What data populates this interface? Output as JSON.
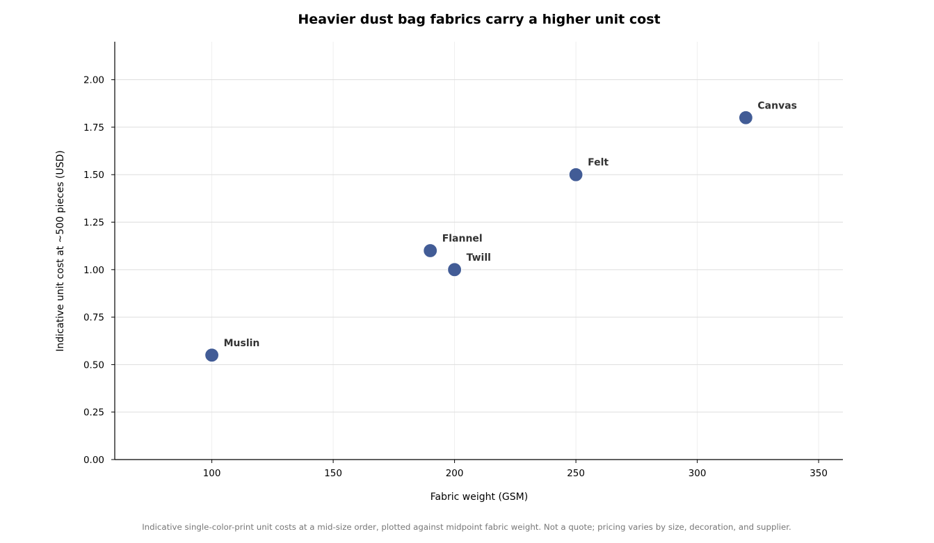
{
  "chart_data": {
    "type": "scatter",
    "title": "Heavier dust bag fabrics carry a higher unit cost",
    "xlabel": "Fabric weight (GSM)",
    "ylabel": "Indicative unit cost at ~500 pieces (USD)",
    "footnote": "Indicative single-color-print unit costs at a mid-size order, plotted against midpoint fabric weight. Not a quote; pricing varies by size, decoration, and supplier.",
    "xlim": [
      60,
      360
    ],
    "ylim": [
      0,
      2.2
    ],
    "x_ticks": [
      100,
      150,
      200,
      250,
      300,
      350
    ],
    "x_tick_labels": [
      "100",
      "150",
      "200",
      "250",
      "300",
      "350"
    ],
    "y_ticks": [
      0,
      0.25,
      0.5,
      0.75,
      1.0,
      1.25,
      1.5,
      1.75,
      2.0
    ],
    "y_tick_labels": [
      "0.00",
      "0.25",
      "0.50",
      "0.75",
      "1.00",
      "1.25",
      "1.50",
      "1.75",
      "2.00"
    ],
    "grid": true,
    "marker_color": "#425c96",
    "points": [
      {
        "label": "Muslin",
        "x": 100,
        "y": 0.55
      },
      {
        "label": "Flannel",
        "x": 190,
        "y": 1.1
      },
      {
        "label": "Twill",
        "x": 200,
        "y": 1.0
      },
      {
        "label": "Felt",
        "x": 250,
        "y": 1.5
      },
      {
        "label": "Canvas",
        "x": 320,
        "y": 1.8
      }
    ]
  }
}
